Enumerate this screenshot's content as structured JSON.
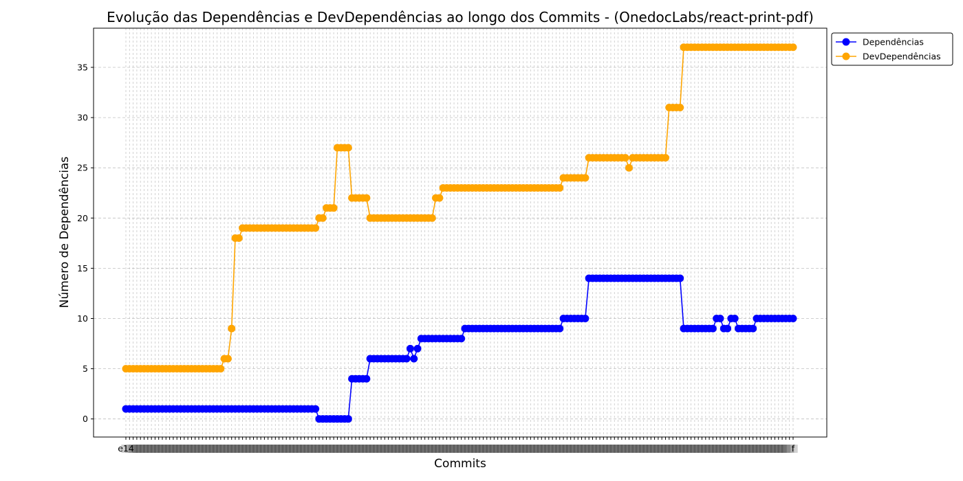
{
  "chart_data": {
    "type": "line",
    "title": "Evolução das Dependências e DevDependências ao longo dos Commits - (OnedocLabs/react-print-pdf)",
    "xlabel": "Commits",
    "ylabel": "Número de Dependências",
    "ylim": [
      -1.8,
      38.9
    ],
    "yticks": [
      0,
      5,
      10,
      15,
      20,
      25,
      30,
      35
    ],
    "x_tick_labels_note": "illegible overlapping commit hashes",
    "x_first_label": "e14",
    "x_last_label": "f",
    "grid": true,
    "legend": "top-right, outside plot area",
    "series": [
      {
        "name": "Dependências",
        "color": "#0000ff",
        "values": [
          1,
          1,
          1,
          1,
          1,
          1,
          1,
          1,
          1,
          1,
          1,
          1,
          1,
          1,
          1,
          1,
          1,
          1,
          1,
          1,
          1,
          1,
          1,
          1,
          1,
          1,
          1,
          1,
          1,
          1,
          1,
          1,
          1,
          1,
          1,
          1,
          1,
          1,
          1,
          1,
          1,
          1,
          1,
          1,
          1,
          1,
          1,
          1,
          1,
          1,
          1,
          1,
          1,
          0,
          0,
          0,
          0,
          0,
          0,
          0,
          0,
          0,
          4,
          4,
          4,
          4,
          4,
          6,
          6,
          6,
          6,
          6,
          6,
          6,
          6,
          6,
          6,
          6,
          7,
          6,
          7,
          8,
          8,
          8,
          8,
          8,
          8,
          8,
          8,
          8,
          8,
          8,
          8,
          9,
          9,
          9,
          9,
          9,
          9,
          9,
          9,
          9,
          9,
          9,
          9,
          9,
          9,
          9,
          9,
          9,
          9,
          9,
          9,
          9,
          9,
          9,
          9,
          9,
          9,
          9,
          10,
          10,
          10,
          10,
          10,
          10,
          10,
          14,
          14,
          14,
          14,
          14,
          14,
          14,
          14,
          14,
          14,
          14,
          14,
          14,
          14,
          14,
          14,
          14,
          14,
          14,
          14,
          14,
          14,
          14,
          14,
          14,
          14,
          9,
          9,
          9,
          9,
          9,
          9,
          9,
          9,
          9,
          10,
          10,
          9,
          9,
          10,
          10,
          9,
          9,
          9,
          9,
          9,
          10,
          10,
          10,
          10,
          10,
          10,
          10,
          10,
          10,
          10,
          10
        ]
      },
      {
        "name": "DevDependências",
        "color": "#ffa500",
        "values": [
          5,
          5,
          5,
          5,
          5,
          5,
          5,
          5,
          5,
          5,
          5,
          5,
          5,
          5,
          5,
          5,
          5,
          5,
          5,
          5,
          5,
          5,
          5,
          5,
          5,
          5,
          5,
          6,
          6,
          9,
          18,
          18,
          19,
          19,
          19,
          19,
          19,
          19,
          19,
          19,
          19,
          19,
          19,
          19,
          19,
          19,
          19,
          19,
          19,
          19,
          19,
          19,
          19,
          20,
          20,
          21,
          21,
          21,
          27,
          27,
          27,
          27,
          22,
          22,
          22,
          22,
          22,
          20,
          20,
          20,
          20,
          20,
          20,
          20,
          20,
          20,
          20,
          20,
          20,
          20,
          20,
          20,
          20,
          20,
          20,
          22,
          22,
          23,
          23,
          23,
          23,
          23,
          23,
          23,
          23,
          23,
          23,
          23,
          23,
          23,
          23,
          23,
          23,
          23,
          23,
          23,
          23,
          23,
          23,
          23,
          23,
          23,
          23,
          23,
          23,
          23,
          23,
          23,
          23,
          23,
          24,
          24,
          24,
          24,
          24,
          24,
          24,
          26,
          26,
          26,
          26,
          26,
          26,
          26,
          26,
          26,
          26,
          26,
          25,
          26,
          26,
          26,
          26,
          26,
          26,
          26,
          26,
          26,
          26,
          31,
          31,
          31,
          31,
          37,
          37,
          37,
          37,
          37,
          37,
          37,
          37,
          37,
          37,
          37,
          37,
          37,
          37,
          37,
          37,
          37,
          37,
          37,
          37,
          37,
          37,
          37,
          37,
          37,
          37,
          37,
          37,
          37,
          37,
          37
        ]
      }
    ]
  }
}
